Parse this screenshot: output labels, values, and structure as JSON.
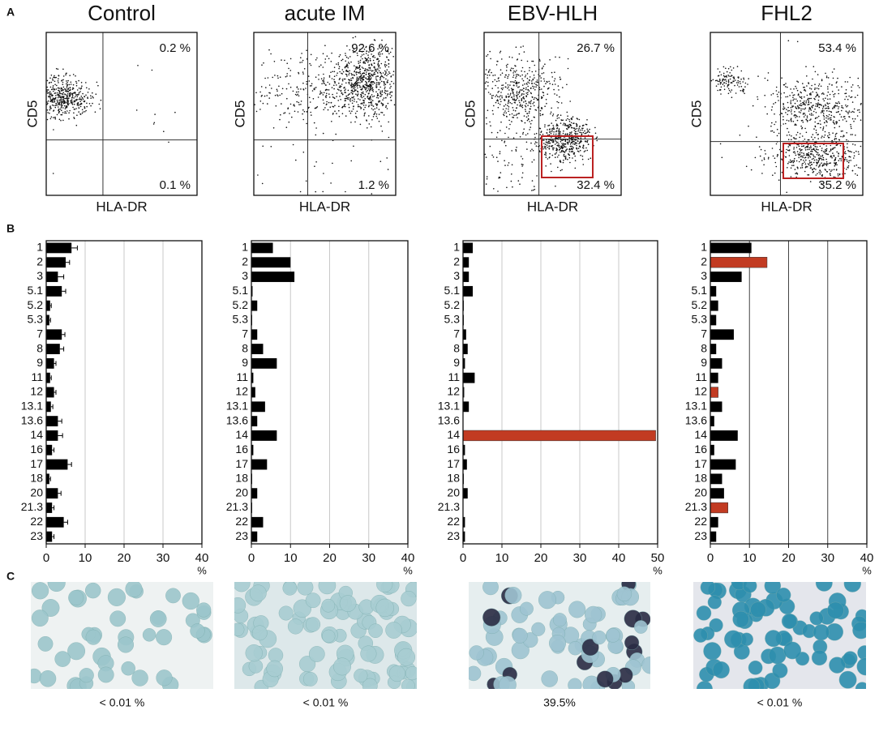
{
  "panel_labels": [
    "A",
    "B",
    "C"
  ],
  "flow": [
    {
      "title": "Control",
      "y_label": "CD5",
      "x_label": "HLA-DR",
      "upper_right": "0.2 %",
      "lower_right": "0.1 %"
    },
    {
      "title": "acute IM",
      "y_label": "CD5",
      "x_label": "HLA-DR",
      "upper_right": "92.6 %",
      "lower_right": "1.2 %"
    },
    {
      "title": "EBV-HLH",
      "y_label": "CD5",
      "x_label": "HLA-DR",
      "upper_right": "26.7 %",
      "lower_right": "32.4 %"
    },
    {
      "title": "FHL2",
      "y_label": "CD5",
      "x_label": "HLA-DR",
      "upper_right": "53.4 %",
      "lower_right": "35.2 %"
    }
  ],
  "chart_data": [
    {
      "type": "bar",
      "orientation": "horizontal",
      "categories": [
        "1",
        "2",
        "3",
        "5.1",
        "5.2",
        "5.3",
        "7",
        "8",
        "9",
        "11",
        "12",
        "13.1",
        "13.6",
        "14",
        "16",
        "17",
        "18",
        "20",
        "21.3",
        "22",
        "23"
      ],
      "values": [
        6.5,
        5,
        3,
        4,
        1,
        0.8,
        4,
        3.5,
        2,
        1,
        2,
        1.2,
        3,
        3,
        1.5,
        5.5,
        0.8,
        3,
        1.5,
        4.5,
        1.5
      ],
      "errors": [
        1.5,
        1,
        1.5,
        1,
        0.3,
        0.3,
        0.8,
        1,
        0.5,
        0.3,
        0.5,
        0.5,
        1,
        1.2,
        0.5,
        1,
        0.3,
        0.8,
        0.5,
        1,
        0.5
      ],
      "colors": [
        "#000",
        "#000",
        "#000",
        "#000",
        "#000",
        "#000",
        "#000",
        "#000",
        "#000",
        "#000",
        "#000",
        "#000",
        "#000",
        "#000",
        "#000",
        "#000",
        "#000",
        "#000",
        "#000",
        "#000",
        "#000"
      ],
      "xlim": [
        0,
        40
      ],
      "xticks": [
        0,
        10,
        20,
        30,
        40
      ],
      "xlabel": "%",
      "grid": true,
      "grid_color": "#c8c8c8"
    },
    {
      "type": "bar",
      "orientation": "horizontal",
      "categories": [
        "1",
        "2",
        "3",
        "5.1",
        "5.2",
        "5.3",
        "7",
        "8",
        "9",
        "11",
        "12",
        "13.1",
        "13.6",
        "14",
        "16",
        "17",
        "18",
        "20",
        "21.3",
        "22",
        "23"
      ],
      "values": [
        5.5,
        10,
        11,
        0.3,
        1.5,
        0.2,
        1.5,
        3,
        6.5,
        0.5,
        1,
        3.5,
        1.5,
        6.5,
        0.5,
        4,
        0.2,
        1.5,
        0.2,
        3,
        1.5
      ],
      "colors": [
        "#000",
        "#000",
        "#000",
        "#000",
        "#000",
        "#000",
        "#000",
        "#000",
        "#000",
        "#000",
        "#000",
        "#000",
        "#000",
        "#000",
        "#000",
        "#000",
        "#000",
        "#000",
        "#000",
        "#000",
        "#000"
      ],
      "xlim": [
        0,
        40
      ],
      "xticks": [
        0,
        10,
        20,
        30,
        40
      ],
      "xlabel": "%",
      "grid": true,
      "grid_color": "#c8c8c8"
    },
    {
      "type": "bar",
      "orientation": "horizontal",
      "categories": [
        "1",
        "2",
        "3",
        "5.1",
        "5.2",
        "5.3",
        "7",
        "8",
        "9",
        "11",
        "12",
        "13.1",
        "13.6",
        "14",
        "16",
        "17",
        "18",
        "20",
        "21.3",
        "22",
        "23"
      ],
      "values": [
        2.5,
        1.5,
        1.5,
        2.5,
        0.2,
        0.2,
        0.8,
        1.2,
        0.5,
        3,
        0.3,
        1.5,
        0,
        49.5,
        0.5,
        1,
        0.2,
        1.2,
        0.1,
        0.5,
        0.5
      ],
      "colors": [
        "#000",
        "#000",
        "#000",
        "#000",
        "#000",
        "#000",
        "#000",
        "#000",
        "#000",
        "#000",
        "#000",
        "#000",
        "#000",
        "#c23b22",
        "#000",
        "#000",
        "#000",
        "#000",
        "#000",
        "#000",
        "#000"
      ],
      "xlim": [
        0,
        50
      ],
      "xticks": [
        0,
        10,
        20,
        30,
        40,
        50
      ],
      "xlabel": "%",
      "grid": true,
      "grid_color": "#c8c8c8"
    },
    {
      "type": "bar",
      "orientation": "horizontal",
      "categories": [
        "1",
        "2",
        "3",
        "5.1",
        "5.2",
        "5.3",
        "7",
        "8",
        "9",
        "11",
        "12",
        "13.1",
        "13.6",
        "14",
        "16",
        "17",
        "18",
        "20",
        "21.3",
        "22",
        "23"
      ],
      "values": [
        10.5,
        14.5,
        8,
        1.5,
        2,
        1.5,
        6,
        1.5,
        3,
        2,
        2,
        3,
        1,
        7,
        1,
        6.5,
        3,
        3.5,
        4.5,
        2,
        1.5
      ],
      "colors": [
        "#000",
        "#c23b22",
        "#000",
        "#000",
        "#000",
        "#000",
        "#000",
        "#000",
        "#000",
        "#000",
        "#c23b22",
        "#000",
        "#000",
        "#000",
        "#000",
        "#000",
        "#000",
        "#000",
        "#c23b22",
        "#000",
        "#000"
      ],
      "xlim": [
        0,
        40
      ],
      "xticks": [
        0,
        10,
        20,
        30,
        40
      ],
      "xlabel": "%",
      "grid": true,
      "grid_color": "#444"
    }
  ],
  "images": [
    {
      "caption": "< 0.01 %"
    },
    {
      "caption": "< 0.01 %"
    },
    {
      "caption": "39.5%"
    },
    {
      "caption": "< 0.01 %"
    }
  ]
}
